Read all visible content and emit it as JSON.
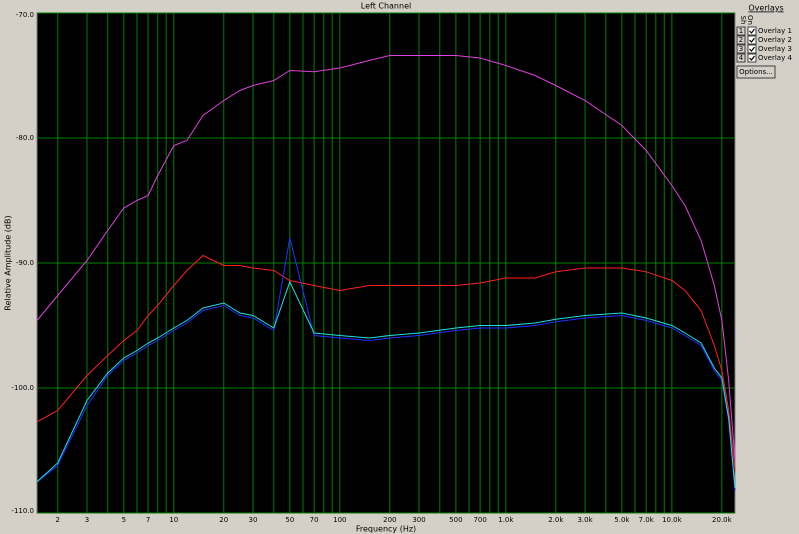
{
  "chart_data": {
    "type": "line",
    "title": "Left Channel",
    "xlabel": "Frequency (Hz)",
    "ylabel": "Relative Amplitude (dB)",
    "xscale": "log",
    "grid": true,
    "grid_color": "#008000",
    "background": "#000000",
    "xlim": [
      1.5,
      24000
    ],
    "ylim": [
      -110,
      -70
    ],
    "xticks": [
      2,
      3,
      5,
      7,
      10,
      20,
      30,
      50,
      70,
      100,
      200,
      300,
      500,
      700,
      {
        "value": 1000,
        "label": "1.0k"
      },
      {
        "value": 2000,
        "label": "2.0k"
      },
      {
        "value": 3000,
        "label": "3.0k"
      },
      {
        "value": 5000,
        "label": "5.0k"
      },
      {
        "value": 7000,
        "label": "7.0k"
      },
      {
        "value": 10000,
        "label": "10.0k"
      },
      {
        "value": 20000,
        "label": "20.0k"
      }
    ],
    "xminorticks": [
      4,
      6,
      8,
      9,
      40,
      60,
      80,
      90,
      400,
      600,
      800,
      900,
      4000,
      6000,
      8000,
      9000
    ],
    "yticks": [
      {
        "value": -70,
        "label": "-70.0"
      },
      {
        "value": -80,
        "label": "-80.0"
      },
      {
        "value": -90,
        "label": "-90.0"
      },
      {
        "value": -100,
        "label": "-100.0"
      },
      {
        "value": -110,
        "label": "-110.0"
      }
    ],
    "x": [
      1.5,
      2,
      3,
      4,
      5,
      6,
      7,
      8,
      10,
      12,
      15,
      20,
      25,
      30,
      40,
      50,
      70,
      100,
      150,
      200,
      300,
      500,
      700,
      1000,
      1500,
      2000,
      3000,
      5000,
      7000,
      10000,
      12000,
      15000,
      18000,
      20000,
      22000,
      24000
    ],
    "series": [
      {
        "name": "Overlay 1",
        "color": "#ff2020",
        "values": [
          -102.7,
          -101.8,
          -99.0,
          -97.4,
          -96.2,
          -95.4,
          -94.2,
          -93.4,
          -91.8,
          -90.6,
          -89.4,
          -90.2,
          -90.2,
          -90.4,
          -90.6,
          -91.4,
          -91.8,
          -92.2,
          -91.8,
          -91.8,
          -91.8,
          -91.8,
          -91.6,
          -91.2,
          -91.2,
          -90.7,
          -90.4,
          -90.4,
          -90.7,
          -91.4,
          -92.2,
          -93.8,
          -96.6,
          -98.6,
          -101.8,
          -106.6
        ]
      },
      {
        "name": "Overlay 2",
        "color": "#e040e0",
        "values": [
          -94.6,
          -92.6,
          -89.8,
          -87.4,
          -85.6,
          -85.0,
          -84.6,
          -83.0,
          -80.6,
          -80.2,
          -78.2,
          -77.0,
          -76.2,
          -75.8,
          -75.4,
          -74.6,
          -74.7,
          -74.4,
          -73.8,
          -73.4,
          -73.4,
          -73.4,
          -73.6,
          -74.2,
          -75.0,
          -75.8,
          -77.0,
          -79.0,
          -81.0,
          -83.8,
          -85.4,
          -88.2,
          -91.8,
          -94.6,
          -99.4,
          -105.8
        ]
      },
      {
        "name": "Overlay 3",
        "color": "#2030ff",
        "values": [
          -107.5,
          -106.2,
          -101.4,
          -99.0,
          -97.8,
          -97.2,
          -96.6,
          -96.2,
          -95.4,
          -94.8,
          -93.8,
          -93.4,
          -94.2,
          -94.4,
          -95.4,
          -88.0,
          -95.8,
          -96.0,
          -96.2,
          -96.0,
          -95.8,
          -95.4,
          -95.2,
          -95.2,
          -95.0,
          -94.7,
          -94.4,
          -94.2,
          -94.6,
          -95.2,
          -95.8,
          -96.6,
          -98.6,
          -99.4,
          -102.6,
          -108.2
        ]
      },
      {
        "name": "Overlay 4",
        "color": "#20e0e0",
        "values": [
          -107.5,
          -106.0,
          -101.0,
          -98.8,
          -97.6,
          -97.0,
          -96.4,
          -96.0,
          -95.2,
          -94.6,
          -93.6,
          -93.2,
          -94.0,
          -94.2,
          -95.2,
          -91.5,
          -95.6,
          -95.8,
          -96.0,
          -95.8,
          -95.6,
          -95.2,
          -95.0,
          -95.0,
          -94.8,
          -94.5,
          -94.2,
          -94.0,
          -94.4,
          -95.0,
          -95.6,
          -96.4,
          -98.4,
          -99.2,
          -102.4,
          -108.0
        ]
      }
    ]
  },
  "overlay_panel": {
    "title": "Overlays",
    "columns": [
      "Sh",
      "On"
    ],
    "rows": [
      "1",
      "2",
      "3",
      "4"
    ],
    "button": "Options..."
  }
}
